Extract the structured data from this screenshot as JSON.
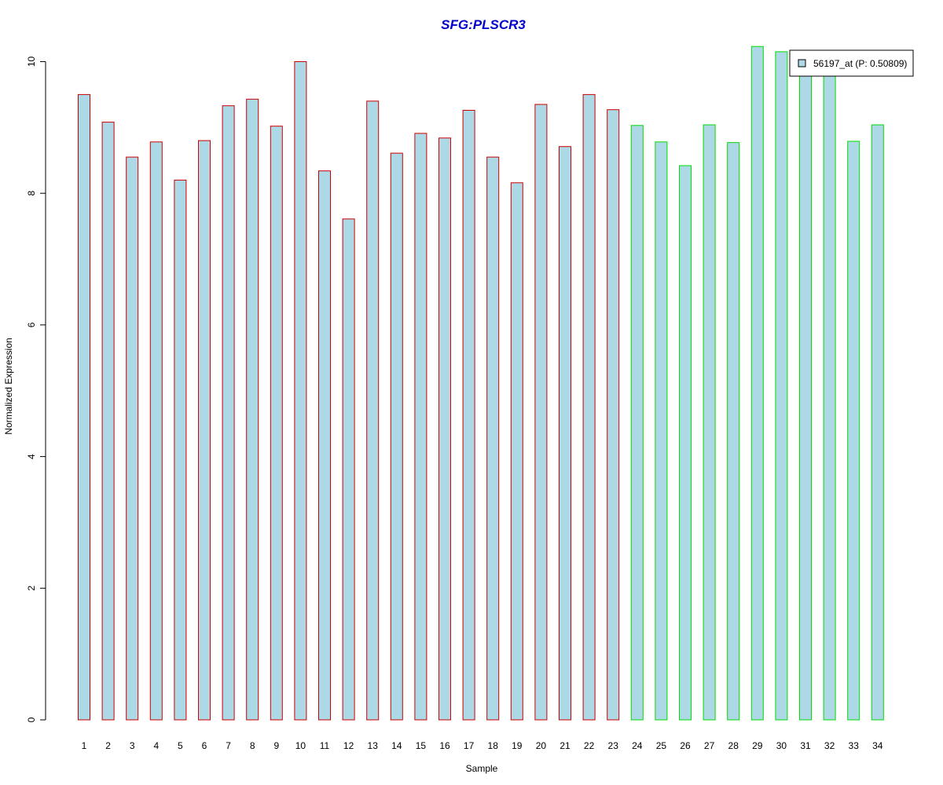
{
  "chart_data": {
    "type": "bar",
    "title": "SFG:PLSCR3",
    "xlabel": "Sample",
    "ylabel": "Normalized Expression",
    "ylim": [
      0,
      10.5
    ],
    "yticks": [
      0,
      2,
      4,
      6,
      8,
      10
    ],
    "grid": false,
    "legend_position": "top-right",
    "colors": {
      "title": "#0000cc",
      "bar_fill": "#add8e6",
      "group1_border": "#cc0000",
      "group2_border": "#00dd00",
      "legend_box_border": "#000000"
    },
    "categories": [
      "1",
      "2",
      "3",
      "4",
      "5",
      "6",
      "7",
      "8",
      "9",
      "10",
      "11",
      "12",
      "13",
      "14",
      "15",
      "16",
      "17",
      "18",
      "19",
      "20",
      "21",
      "22",
      "23",
      "24",
      "25",
      "26",
      "27",
      "28",
      "29",
      "30",
      "31",
      "32",
      "33",
      "34"
    ],
    "series": [
      {
        "name": "56197_at (P: 0.50809)",
        "values": [
          9.5,
          9.08,
          8.55,
          8.78,
          8.2,
          8.8,
          9.33,
          9.43,
          9.02,
          10.0,
          8.34,
          7.61,
          9.4,
          8.61,
          8.91,
          8.84,
          9.26,
          8.55,
          8.16,
          9.35,
          8.71,
          9.5,
          9.27,
          9.03,
          8.78,
          8.42,
          9.04,
          8.77,
          10.23,
          10.15,
          9.85,
          9.85,
          8.79,
          9.04
        ],
        "border_groups": [
          "group1",
          "group1",
          "group1",
          "group1",
          "group1",
          "group1",
          "group1",
          "group1",
          "group1",
          "group1",
          "group1",
          "group1",
          "group1",
          "group1",
          "group1",
          "group1",
          "group1",
          "group1",
          "group1",
          "group1",
          "group1",
          "group1",
          "group1",
          "group2",
          "group2",
          "group2",
          "group2",
          "group2",
          "group2",
          "group2",
          "group2",
          "group2",
          "group2",
          "group2"
        ]
      }
    ]
  }
}
